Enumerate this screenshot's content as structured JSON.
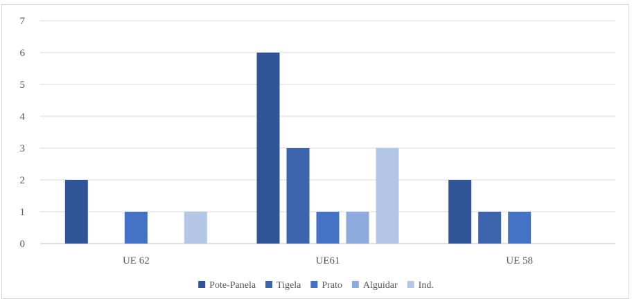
{
  "chart_data": {
    "type": "bar",
    "title": "",
    "xlabel": "",
    "ylabel": "",
    "categories": [
      "UE 62",
      "UE61",
      "UE 58"
    ],
    "series": [
      {
        "name": "Pote-Panela",
        "values": [
          2,
          6,
          2
        ],
        "color": "#2f5597"
      },
      {
        "name": "Tigela",
        "values": [
          0,
          3,
          1
        ],
        "color": "#3b64ad"
      },
      {
        "name": "Prato",
        "values": [
          1,
          1,
          1
        ],
        "color": "#4472c4"
      },
      {
        "name": "Alguidar",
        "values": [
          0,
          1,
          0
        ],
        "color": "#8faadc"
      },
      {
        "name": "Ind.",
        "values": [
          1,
          3,
          0
        ],
        "color": "#b4c7e7"
      }
    ],
    "ylim": [
      0,
      7
    ],
    "yticks": [
      0,
      1,
      2,
      3,
      4,
      5,
      6,
      7
    ],
    "grid": true,
    "legend_position": "bottom"
  }
}
